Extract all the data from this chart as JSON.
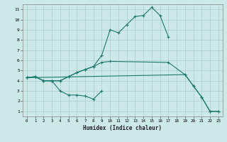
{
  "title": "",
  "xlabel": "Humidex (Indice chaleur)",
  "bg_color": "#cde8e8",
  "grid_color": "#aacccc",
  "line_color": "#1a7a6e",
  "xlim": [
    -0.5,
    23.5
  ],
  "ylim": [
    0.5,
    11.5
  ],
  "xticks": [
    0,
    1,
    2,
    3,
    4,
    5,
    6,
    7,
    8,
    9,
    10,
    11,
    12,
    13,
    14,
    15,
    16,
    17,
    18,
    19,
    20,
    21,
    22,
    23
  ],
  "yticks": [
    1,
    2,
    3,
    4,
    5,
    6,
    7,
    8,
    9,
    10,
    11
  ],
  "line_upper_x": [
    0,
    1,
    2,
    3,
    4,
    5,
    6,
    7,
    8,
    9,
    10,
    11,
    12,
    13,
    14,
    15,
    16,
    17
  ],
  "line_upper_y": [
    4.3,
    4.4,
    4.0,
    4.0,
    4.0,
    4.4,
    4.8,
    5.1,
    5.4,
    6.5,
    9.0,
    8.7,
    9.5,
    10.3,
    10.4,
    11.2,
    10.4,
    8.3
  ],
  "line_mid_x": [
    0,
    1,
    2,
    3,
    4,
    5,
    6,
    7,
    8,
    9,
    10,
    17,
    19,
    20,
    21,
    22,
    23
  ],
  "line_mid_y": [
    4.3,
    4.4,
    4.0,
    4.0,
    4.0,
    4.4,
    4.8,
    5.1,
    5.4,
    5.8,
    5.9,
    5.8,
    4.6,
    3.5,
    2.4,
    1.0,
    1.0
  ],
  "line_lower_x": [
    0,
    1,
    2,
    3,
    4,
    5,
    6,
    7,
    8,
    9
  ],
  "line_lower_y": [
    4.3,
    4.4,
    4.0,
    4.0,
    3.0,
    2.6,
    2.6,
    2.5,
    2.2,
    3.0
  ],
  "line_right_x": [
    0,
    19,
    20,
    21,
    22,
    23
  ],
  "line_right_y": [
    4.3,
    4.6,
    3.5,
    2.4,
    1.0,
    1.0
  ]
}
